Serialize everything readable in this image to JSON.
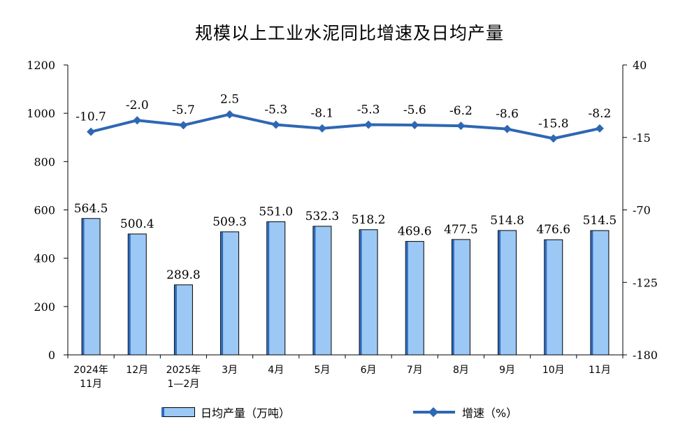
{
  "title": "规模以上工业水泥同比增速及日均产量",
  "legend": {
    "bar_label": "日均产量（万吨）",
    "line_label": "增速（%）"
  },
  "colors": {
    "bar_fill": "#9cc8f5",
    "bar_edge": "#2e6bbf",
    "line": "#2e67b4"
  },
  "chart_data": {
    "type": "bar+line",
    "categories": [
      [
        "2024年",
        "11月"
      ],
      [
        "12月"
      ],
      [
        "2025年",
        "1—2月"
      ],
      [
        "3月"
      ],
      [
        "4月"
      ],
      [
        "5月"
      ],
      [
        "6月"
      ],
      [
        "7月"
      ],
      [
        "8月"
      ],
      [
        "9月"
      ],
      [
        "10月"
      ],
      [
        "11月"
      ]
    ],
    "series": [
      {
        "name": "日均产量（万吨）",
        "type": "bar",
        "axis": "left",
        "values": [
          564.5,
          500.4,
          289.8,
          509.3,
          551.0,
          532.3,
          518.2,
          469.6,
          477.5,
          514.8,
          476.6,
          514.5
        ],
        "labels": [
          "564.5",
          "500.4",
          "289.8",
          "509.3",
          "551.0",
          "532.3",
          "518.2",
          "469.6",
          "477.5",
          "514.8",
          "476.6",
          "514.5"
        ]
      },
      {
        "name": "增速（%）",
        "type": "line",
        "axis": "right",
        "values": [
          -10.7,
          -2.0,
          -5.7,
          2.5,
          -5.3,
          -8.1,
          -5.3,
          -5.6,
          -6.2,
          -8.6,
          -15.8,
          -8.2
        ],
        "labels": [
          "-10.7",
          "-2.0",
          "-5.7",
          "2.5",
          "-5.3",
          "-8.1",
          "-5.3",
          "-5.6",
          "-6.2",
          "-8.6",
          "-15.8",
          "-8.2"
        ]
      }
    ],
    "y_left": {
      "min": 0,
      "max": 1200,
      "ticks": [
        "0",
        "200",
        "400",
        "600",
        "800",
        "1000",
        "1200"
      ]
    },
    "y_right": {
      "min": -180,
      "max": 40,
      "ticks": [
        "-180",
        "-125",
        "-70",
        "-15",
        "40"
      ]
    },
    "grid": false
  }
}
